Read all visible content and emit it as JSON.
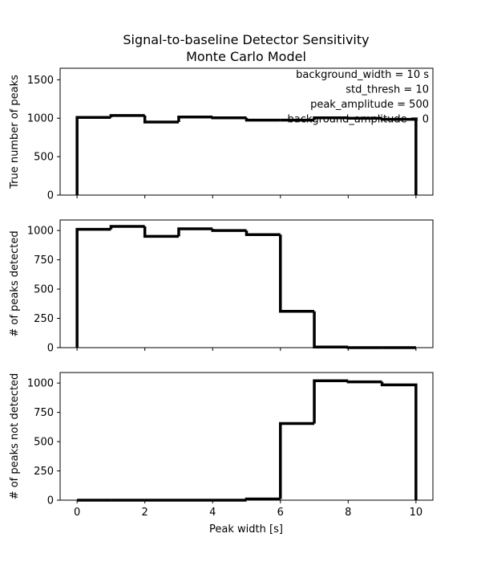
{
  "chart_data": {
    "type": "step-histogram",
    "title": [
      "Signal-to-baseline Detector Sensitivity",
      "Monte Carlo Model"
    ],
    "xlabel": "Peak width [s]",
    "xlim": [
      -0.5,
      10.5
    ],
    "x_ticks": [
      0,
      2,
      4,
      6,
      8,
      10
    ],
    "bin_edges": [
      0,
      1,
      2,
      3,
      4,
      5,
      6,
      7,
      8,
      9,
      10
    ],
    "line_color": "#000000",
    "annotation": [
      "background_width = 10 s",
      "std_thresh = 10",
      "peak_amplitude = 500",
      "background_amplitude = 0"
    ],
    "panels": [
      {
        "ylabel": "True number of peaks",
        "ylim": [
          0,
          1650
        ],
        "y_ticks": [
          0,
          500,
          1000,
          1500
        ],
        "counts": [
          1010,
          1035,
          950,
          1015,
          1005,
          975,
          975,
          1005,
          1000,
          985
        ]
      },
      {
        "ylabel": "# of peaks detected",
        "ylim": [
          0,
          1090
        ],
        "y_ticks": [
          0,
          250,
          500,
          750,
          1000
        ],
        "counts": [
          1010,
          1035,
          950,
          1015,
          1000,
          965,
          310,
          5,
          0,
          0
        ]
      },
      {
        "ylabel": "# of peaks not detected",
        "ylim": [
          0,
          1090
        ],
        "y_ticks": [
          0,
          250,
          500,
          750,
          1000
        ],
        "counts": [
          0,
          0,
          0,
          0,
          0,
          10,
          655,
          1020,
          1010,
          985
        ]
      }
    ]
  }
}
